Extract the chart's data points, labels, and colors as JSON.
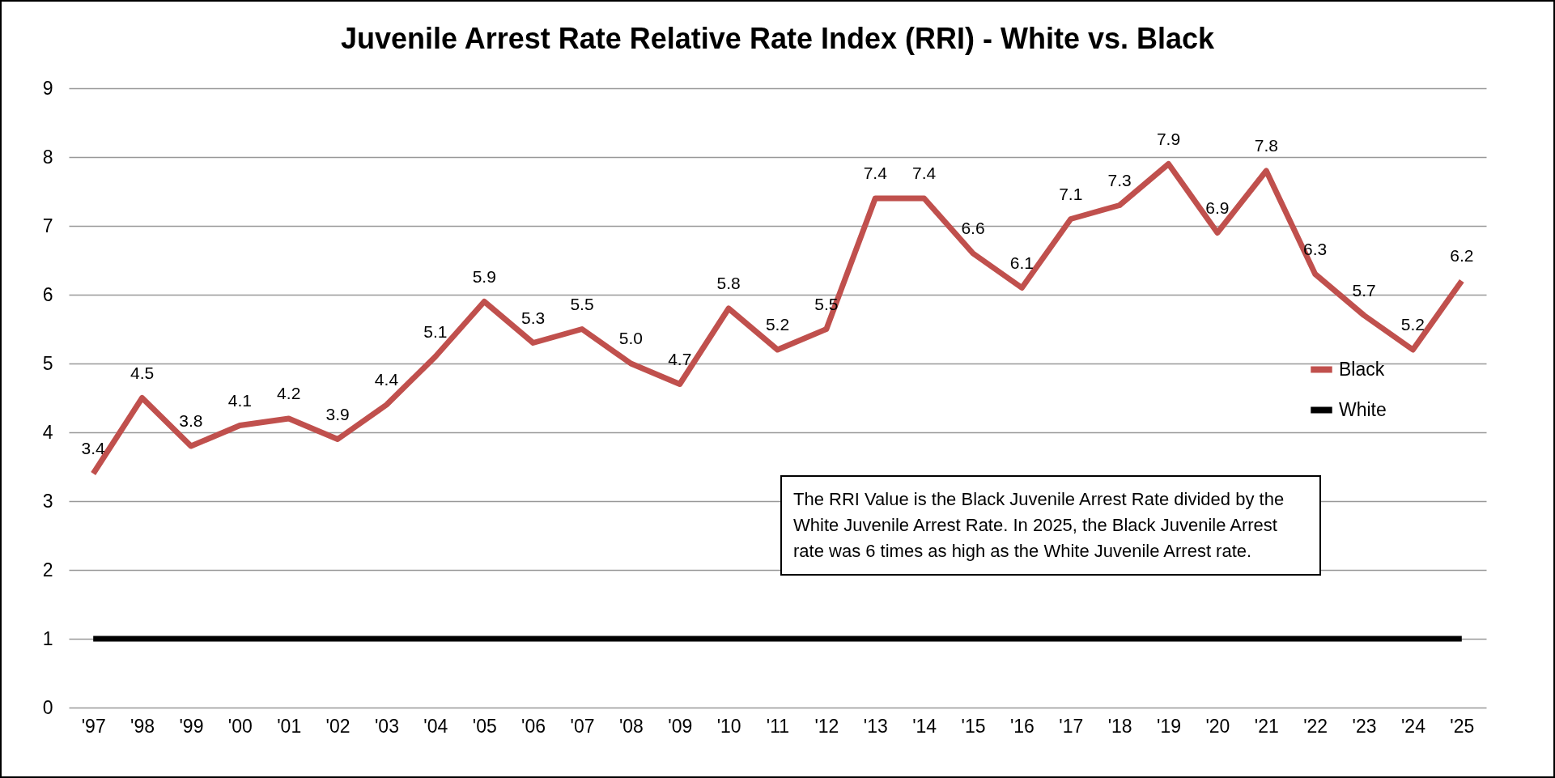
{
  "chart_data": {
    "type": "line",
    "title": "Juvenile Arrest Rate Relative Rate Index (RRI) - White vs. Black",
    "categories": [
      "'97",
      "'98",
      "'99",
      "'00",
      "'01",
      "'02",
      "'03",
      "'04",
      "'05",
      "'06",
      "'07",
      "'08",
      "'09",
      "'10",
      "'11",
      "'12",
      "'13",
      "'14",
      "'15",
      "'16",
      "'17",
      "'18",
      "'19",
      "'20",
      "'21",
      "'22",
      "'23",
      "'24",
      "'25"
    ],
    "series": [
      {
        "name": "Black",
        "color": "#c0504d",
        "values": [
          3.4,
          4.5,
          3.8,
          4.1,
          4.2,
          3.9,
          4.4,
          5.1,
          5.9,
          5.3,
          5.5,
          5.0,
          4.7,
          5.8,
          5.2,
          5.5,
          7.4,
          7.4,
          6.6,
          6.1,
          7.1,
          7.3,
          7.9,
          6.9,
          7.8,
          6.3,
          5.7,
          5.2,
          6.2
        ],
        "value_labels": [
          "3.4",
          "4.5",
          "3.8",
          "4.1",
          "4.2",
          "3.9",
          "4.4",
          "5.1",
          "5.9",
          "5.3",
          "5.5",
          "5.0",
          "4.7",
          "5.8",
          "5.2",
          "5.5",
          "7.4",
          "7.4",
          "6.6",
          "6.1",
          "7.1",
          "7.3",
          "7.9",
          "6.9",
          "7.8",
          "6.3",
          "5.7",
          "5.2",
          "6.2"
        ]
      },
      {
        "name": "White",
        "color": "#000000",
        "values": [
          1,
          1,
          1,
          1,
          1,
          1,
          1,
          1,
          1,
          1,
          1,
          1,
          1,
          1,
          1,
          1,
          1,
          1,
          1,
          1,
          1,
          1,
          1,
          1,
          1,
          1,
          1,
          1,
          1
        ]
      }
    ],
    "ylim": [
      0,
      9
    ],
    "yticks": [
      0,
      1,
      2,
      3,
      4,
      5,
      6,
      7,
      8,
      9
    ],
    "grid": "y",
    "legend": "right",
    "marker": "none",
    "line_style": "solid",
    "annotations": [
      "The RRI Value is the Black Juvenile Arrest Rate divided by the White Juvenile Arrest Rate. In 2025, the Black Juvenile Arrest rate was 6 times as high as the White Juvenile Arrest rate."
    ]
  }
}
